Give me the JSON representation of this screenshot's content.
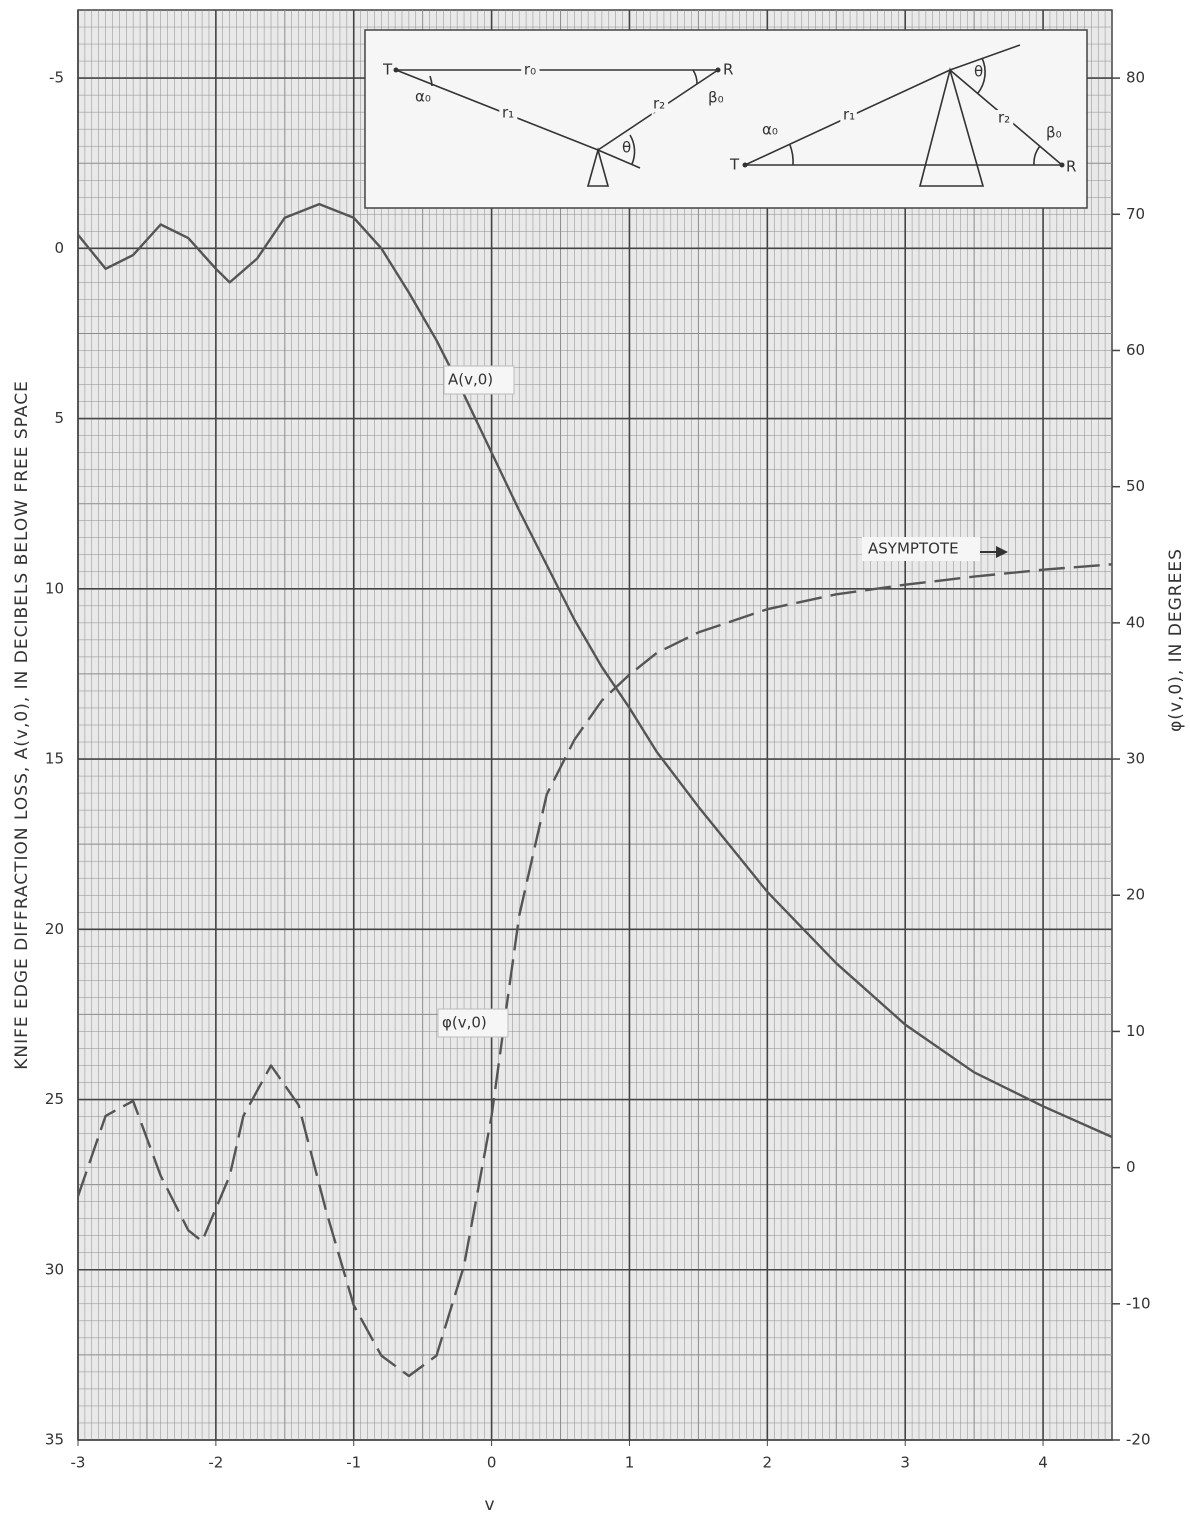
{
  "chart_data": {
    "type": "line",
    "x_label": "v",
    "y_label": "KNIFE EDGE DIFFRACTION LOSS, A(v,0), IN DECIBELS BELOW FREE SPACE",
    "y2_label": "φ(v,0), IN DEGREES",
    "xlim": [
      -3,
      4.5
    ],
    "xticks": [
      -3,
      -2,
      -1,
      0,
      1,
      2,
      3,
      4
    ],
    "ylim": [
      35,
      -7
    ],
    "yticks": [
      -5,
      0,
      5,
      10,
      15,
      20,
      25,
      30,
      35
    ],
    "y2lim": [
      -20,
      85
    ],
    "y2ticks": [
      -20,
      -10,
      0,
      10,
      20,
      30,
      40,
      50,
      60,
      70,
      80
    ],
    "grid": true,
    "minor_grid": true,
    "series": [
      {
        "name": "A(v,0)",
        "color": "#555555",
        "dashed": false,
        "x": [
          -3,
          -2.8,
          -2.6,
          -2.4,
          -2.2,
          -2.0,
          -1.9,
          -1.7,
          -1.5,
          -1.25,
          -1.0,
          -0.8,
          -0.6,
          -0.4,
          -0.2,
          0,
          0.2,
          0.4,
          0.6,
          0.8,
          1.0,
          1.2,
          1.5,
          2.0,
          2.5,
          3.0,
          3.5,
          4.0,
          4.5
        ],
        "values": [
          -0.4,
          0.6,
          0.2,
          -0.7,
          -0.3,
          0.6,
          1.0,
          0.3,
          -0.9,
          -1.3,
          -0.9,
          0,
          1.3,
          2.7,
          4.3,
          6.0,
          7.7,
          9.3,
          10.9,
          12.3,
          13.5,
          14.8,
          16.4,
          18.9,
          21.0,
          22.8,
          24.2,
          25.2,
          26.1
        ]
      },
      {
        "name": "φ(v,0)",
        "color": "#555555",
        "dashed": true,
        "axis": "y2",
        "x": [
          -3,
          -2.8,
          -2.6,
          -2.4,
          -2.2,
          -2.1,
          -1.9,
          -1.8,
          -1.6,
          -1.4,
          -1.2,
          -1.0,
          -0.8,
          -0.6,
          -0.4,
          -0.2,
          0,
          0.1,
          0.2,
          0.4,
          0.6,
          0.8,
          1.0,
          1.2,
          1.5,
          2.0,
          2.5,
          3.0,
          3.5,
          4.0,
          4.5
        ],
        "values": [
          -2.1,
          3.8,
          4.9,
          -0.6,
          -4.6,
          -5.4,
          -0.6,
          3.8,
          7.5,
          4.6,
          -3.2,
          -10.1,
          -13.8,
          -15.3,
          -13.8,
          -7.2,
          3.8,
          11.2,
          18.5,
          27.4,
          31.4,
          34.3,
          36.2,
          37.8,
          39.3,
          41.0,
          42.1,
          42.8,
          43.4,
          43.9,
          44.3
        ]
      }
    ],
    "annotations": [
      "ASYMPTOTE"
    ],
    "inset": {
      "left": {
        "t": "T",
        "r": "R",
        "r0": "r₀",
        "r1": "r₁",
        "r2": "r₂",
        "alpha": "α₀",
        "beta": "β₀",
        "theta": "θ"
      },
      "right": {
        "t": "T",
        "r": "R",
        "r1": "r₁",
        "r2": "r₂",
        "alpha": "α₀",
        "beta": "β₀",
        "theta": "θ"
      }
    }
  }
}
